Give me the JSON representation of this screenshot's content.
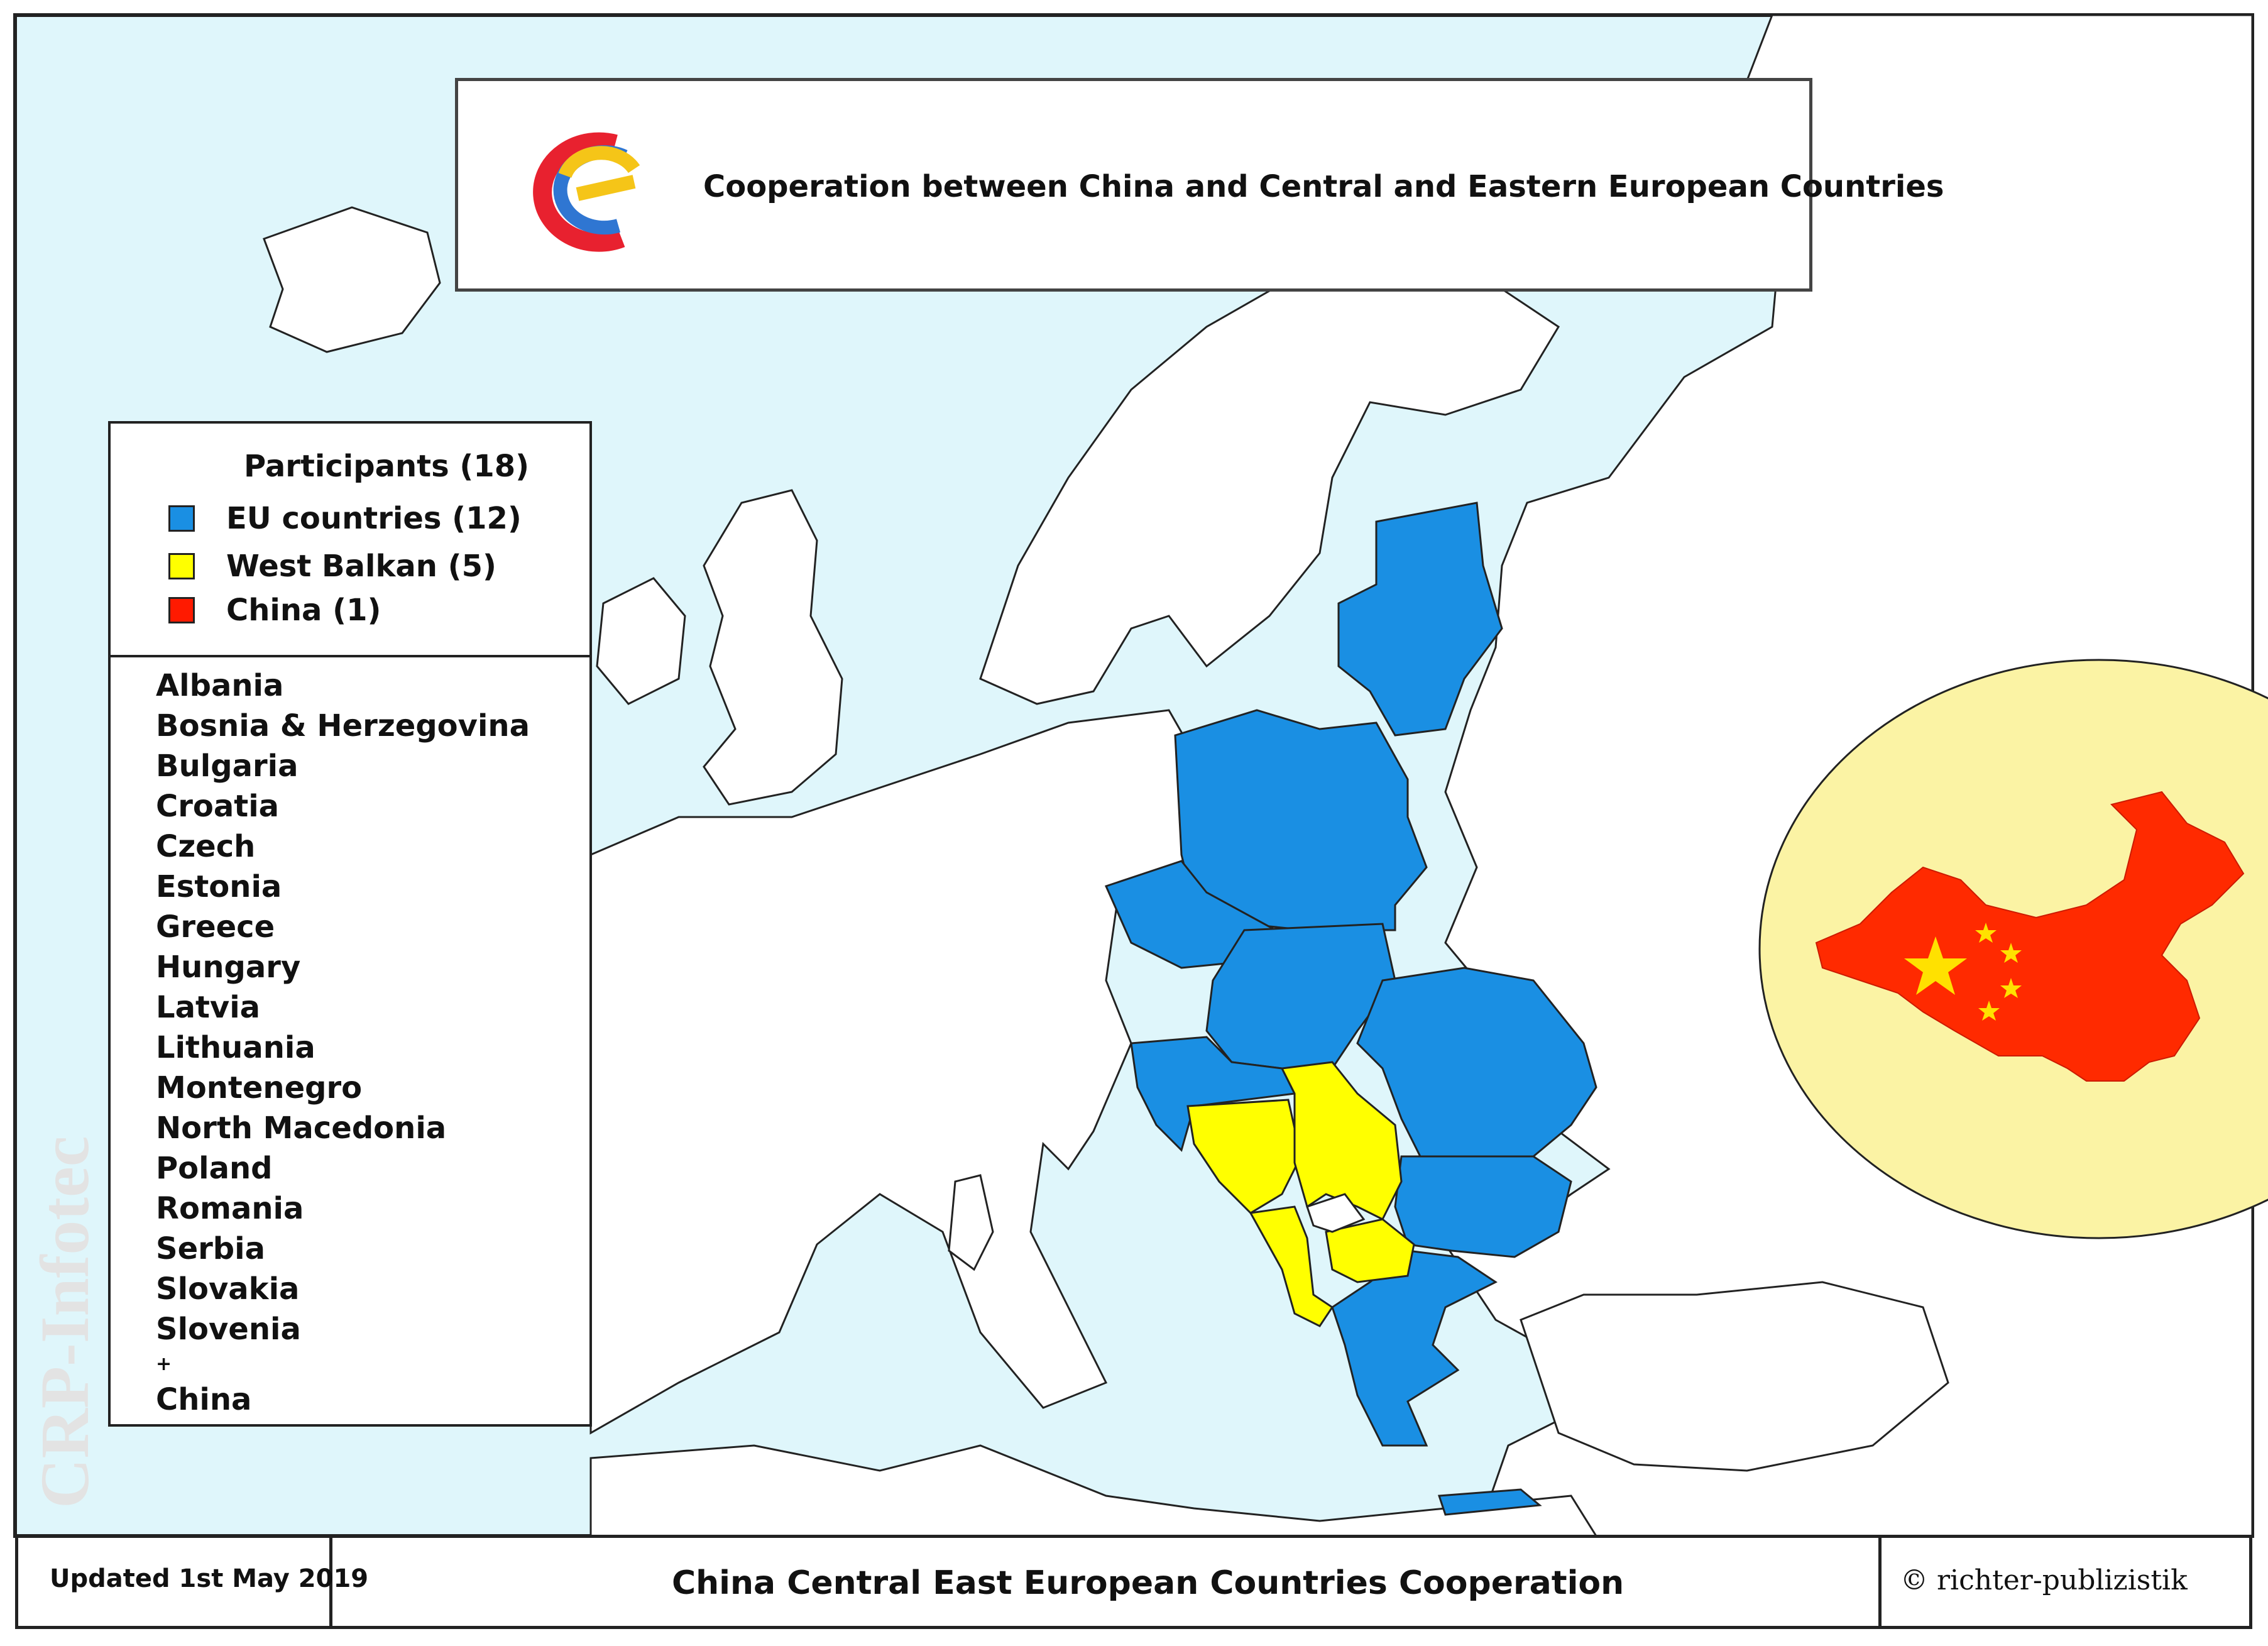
{
  "header": {
    "title": "Cooperation between China and Central and Eastern European Countries"
  },
  "legend": {
    "title": "Participants (18)",
    "items": [
      {
        "label": "EU countries (12)",
        "color": "#1a8fe3"
      },
      {
        "label": "West Balkan  (5)",
        "color": "#ffff00"
      },
      {
        "label": "China (1)",
        "color": "#ff1a00"
      }
    ],
    "countries": [
      "Albania",
      "Bosnia & Herzegovina",
      "Bulgaria",
      "Croatia",
      "Czech",
      "Estonia",
      "Greece",
      "Hungary",
      "Latvia",
      "Lithuania",
      "Montenegro",
      "North Macedonia",
      "Poland",
      "Romania",
      "Serbia",
      "Slovakia",
      "Slovenia"
    ],
    "plus": "+",
    "extra": "China"
  },
  "footer": {
    "updated": "Updated 1st May 2019",
    "title": "China Central East European Countries  Cooperation",
    "copyright": "© richter-publizistik"
  },
  "watermark": "CRP-Infotec",
  "colors": {
    "sea": "#dff6fb",
    "land": "#ffffff",
    "eu": "#1a8fe3",
    "balkan": "#ffff00",
    "china": "#ff2a00",
    "china_highlight": "#fbf3a4"
  }
}
